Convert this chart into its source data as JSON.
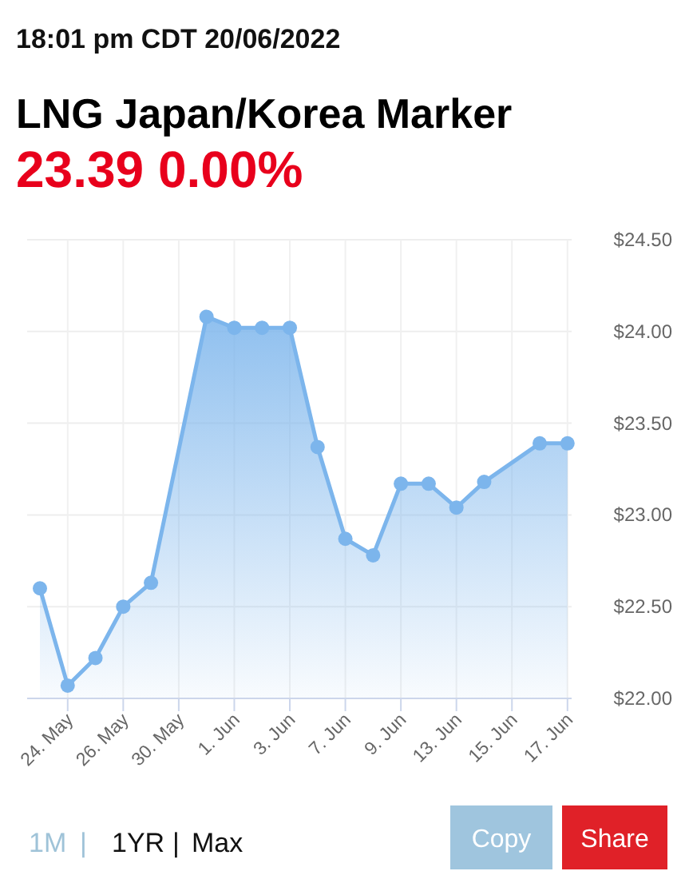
{
  "chart_data": {
    "type": "area",
    "subtitle": "18:01 pm CDT 20/06/2022",
    "title": "LNG Japan/Korea Marker",
    "annotations": [
      "23.39 0.00%",
      "1M",
      "|",
      "1YR",
      "|",
      "Max",
      "Copy",
      "Share"
    ],
    "categories": [
      null,
      "24. May",
      null,
      "26. May",
      null,
      "30. May",
      null,
      "1. Jun",
      null,
      "3. Jun",
      null,
      "7. Jun",
      null,
      "9. Jun",
      null,
      "13. Jun",
      null,
      "15. Jun",
      null,
      "17. Jun"
    ],
    "series": [
      {
        "color": "#7cb5ec",
        "values": [
          22.6,
          22.07,
          22.22,
          22.5,
          22.63,
          null,
          24.08,
          24.02,
          24.02,
          24.02,
          23.37,
          22.87,
          22.78,
          23.17,
          23.17,
          23.04,
          23.18,
          null,
          23.39,
          23.39
        ]
      }
    ],
    "ylim": [
      22,
      24.5
    ],
    "yticks": [
      {
        "value": 22,
        "label": "$22.00"
      },
      {
        "value": 22.5,
        "label": "$22.50"
      },
      {
        "value": 23,
        "label": "$23.00"
      },
      {
        "value": 23.5,
        "label": "$23.50"
      },
      {
        "value": 24,
        "label": "$24.00"
      },
      {
        "value": 24.5,
        "label": "$24.50"
      }
    ],
    "grid": true,
    "marker": "circle"
  }
}
